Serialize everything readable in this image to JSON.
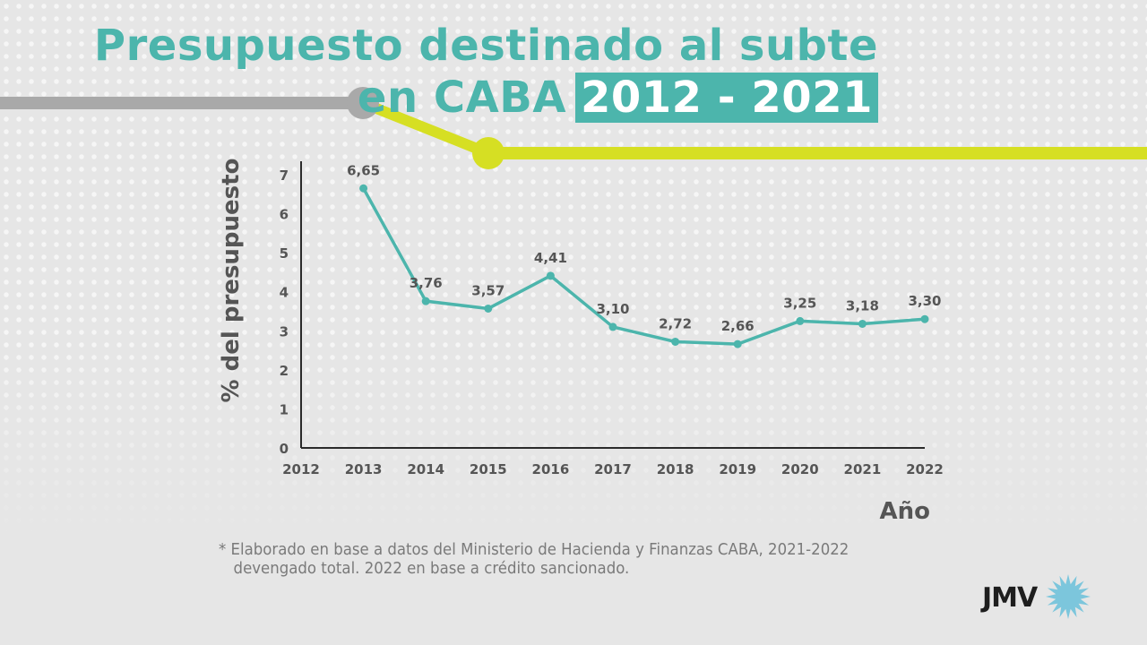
{
  "title": {
    "line1": "Presupuesto destinado al subte",
    "line2_prefix": "en CABA",
    "line2_highlight": "2012 - 2021"
  },
  "footnote": {
    "line1": "* Elaborado en base a datos del Ministerio de Hacienda y Finanzas CABA, 2021-2022",
    "line2": "devengado total. 2022 en base a crédito sancionado."
  },
  "logo": {
    "text": "JMV",
    "icon": "sun-star-icon"
  },
  "colors": {
    "accent": "#4cb5ac",
    "line": "#4cb5ac",
    "deco_gray": "#a9a9a9",
    "deco_yellow": "#d6df23",
    "axis": "#2b2b2b",
    "label": "#555555",
    "logo_icon": "#7cc6dc"
  },
  "chart_data": {
    "type": "line",
    "title": "",
    "xlabel": "Año",
    "ylabel": "% del presupuesto",
    "x_ticks": [
      "2012",
      "2013",
      "2014",
      "2015",
      "2016",
      "2017",
      "2018",
      "2019",
      "2020",
      "2021",
      "2022"
    ],
    "y_ticks": [
      "0",
      "1",
      "2",
      "3",
      "4",
      "5",
      "6",
      "7"
    ],
    "ylim": [
      0,
      7
    ],
    "grid": false,
    "series": [
      {
        "x": [
          "2013",
          "2014",
          "2015",
          "2016",
          "2017",
          "2018",
          "2019",
          "2020",
          "2021",
          "2022"
        ],
        "values": [
          6.65,
          3.76,
          3.57,
          4.41,
          3.1,
          2.72,
          2.66,
          3.25,
          3.18,
          3.3
        ],
        "labels": [
          "6,65",
          "3,76",
          "3,57",
          "4,41",
          "3,10",
          "2,72",
          "2,66",
          "3,25",
          "3,18",
          "3,30"
        ]
      }
    ]
  }
}
